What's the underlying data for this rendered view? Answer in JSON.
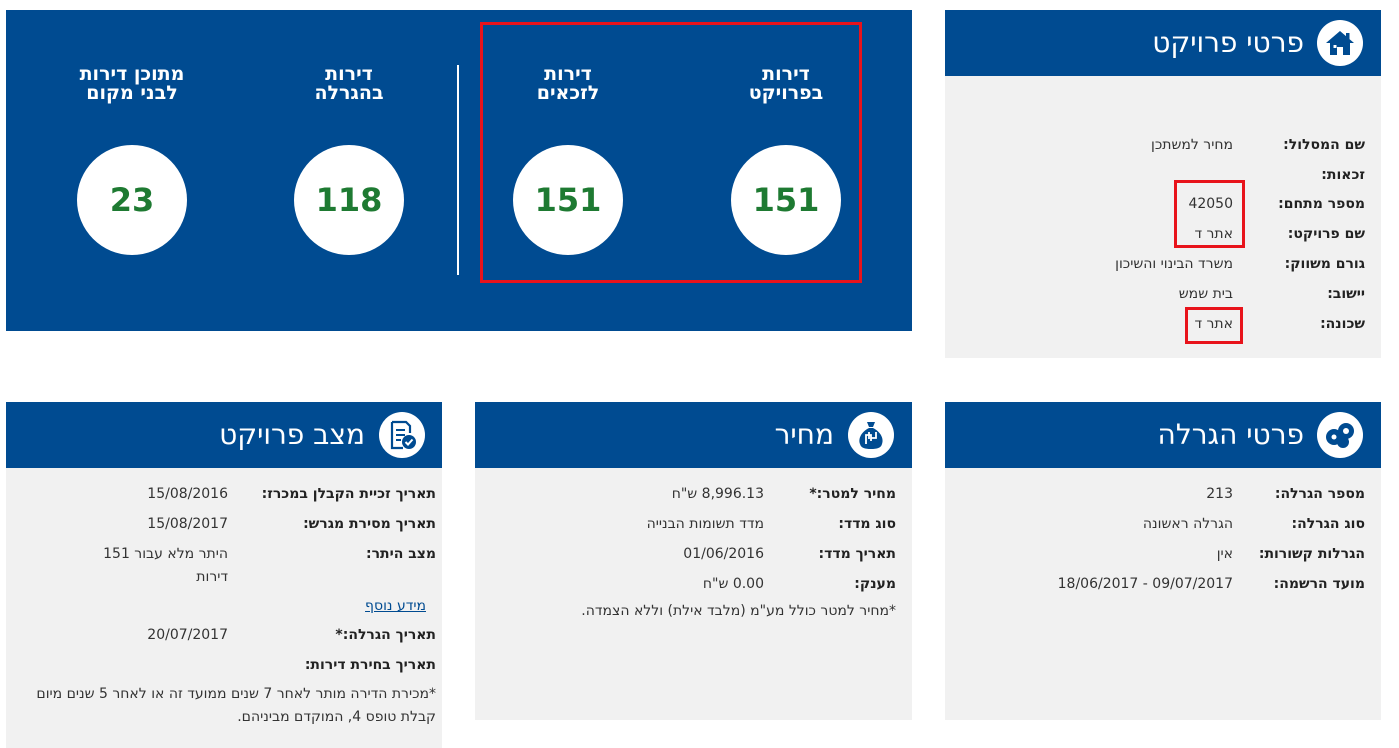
{
  "stats": {
    "items": [
      {
        "label_line1": "דירות",
        "label_line2": "בפרויקט",
        "value": "151"
      },
      {
        "label_line1": "דירות",
        "label_line2": "לזכאים",
        "value": "151"
      },
      {
        "label_line1": "דירות",
        "label_line2": "בהגרלה",
        "value": "118"
      },
      {
        "label_line1": "מתוכן דירות",
        "label_line2": "לבני מקום",
        "value": "23"
      }
    ]
  },
  "project_details": {
    "title": "פרטי פרויקט",
    "icon": "home-icon",
    "rows": [
      {
        "label": "שם המסלול:",
        "value": "מחיר למשתכן"
      },
      {
        "label": "זכאות:",
        "value": ""
      },
      {
        "label": "מספר מתחם:",
        "value": "42050"
      },
      {
        "label": "שם פרויקט:",
        "value": "אתר ד"
      },
      {
        "label": "גורם משווק:",
        "value": "משרד הבינוי והשיכון"
      },
      {
        "label": "יישוב:",
        "value": "בית שמש"
      },
      {
        "label": "שכונה:",
        "value": "אתר ד"
      }
    ]
  },
  "lottery_details": {
    "title": "פרטי הגרלה",
    "icon": "lottery-balls-icon",
    "rows": [
      {
        "label": "מספר הגרלה:",
        "value": "213"
      },
      {
        "label": "סוג הגרלה:",
        "value": "הגרלה ראשונה"
      },
      {
        "label": "הגרלות קשורות:",
        "value": "אין"
      },
      {
        "label": "מועד הרשמה:",
        "value": "09/07/2017 - 18/06/2017"
      }
    ]
  },
  "price": {
    "title": "מחיר",
    "icon": "money-bag-icon",
    "rows": [
      {
        "label": "מחיר למטר:*",
        "value": "8,996.13 ש\"ח"
      },
      {
        "label": "סוג מדד:",
        "value": "מדד תשומות הבנייה"
      },
      {
        "label": "תאריך מדד:",
        "value": "01/06/2016"
      },
      {
        "label": "מענק:",
        "value": "0.00 ש\"ח"
      }
    ],
    "note": "*מחיר למטר כולל מע\"מ (מלבד אילת) וללא הצמדה."
  },
  "project_status": {
    "title": "מצב פרויקט",
    "icon": "document-check-icon",
    "rows": [
      {
        "label": "תאריך זכיית הקבלן במכרז:",
        "value": "15/08/2016"
      },
      {
        "label": "תאריך מסירת מגרש:",
        "value": "15/08/2017"
      },
      {
        "label": "מצב היתר:",
        "value_line1": "היתר מלא עבור 151",
        "value_line2": "דירות"
      },
      {
        "label": "תאריך הגרלה:*",
        "value": "20/07/2017"
      },
      {
        "label": "תאריך בחירת דירות:",
        "value": ""
      }
    ],
    "more_info_link": "מידע נוסף",
    "note_line1": "*מכירת הדירה מותר לאחר 7 שנים ממועד זה או לאחר 5 שנים מיום",
    "note_line2": "קבלת טופס 4, המוקדם מביניהם."
  },
  "colors": {
    "primary_blue": "#004b91",
    "value_green": "#1e7a32",
    "highlight_red": "#e8131b",
    "card_bg": "#f1f1f1"
  }
}
